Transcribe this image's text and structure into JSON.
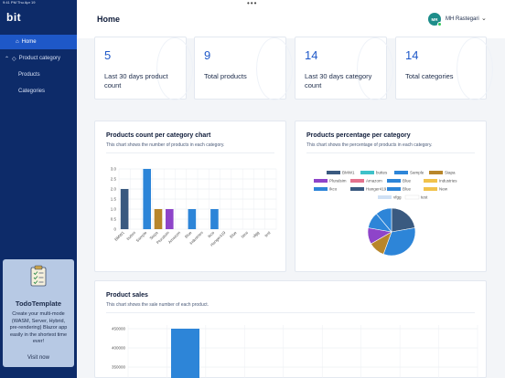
{
  "status": {
    "time": "9:41 PM  Thu Apr 19"
  },
  "sidebar": {
    "logo": "bit",
    "items": [
      {
        "label": "Home",
        "icon": "home-icon"
      },
      {
        "label": "Product category",
        "icon": "tag-icon"
      },
      {
        "label": "Products"
      },
      {
        "label": "Categories"
      }
    ],
    "promo": {
      "title": "TodoTemplate",
      "description": "Create your multi-mode (WASM, Server, Hybrid, pre-rendering) Blazor app easily in the shortest time ever!",
      "button": "Visit now"
    }
  },
  "header": {
    "title": "Home",
    "user_initials": "MR",
    "user_name": "MH Rastegari"
  },
  "stats": [
    {
      "value": "5",
      "label": "Last 30 days product count"
    },
    {
      "value": "9",
      "label": "Total products"
    },
    {
      "value": "14",
      "label": "Last 30 days category count"
    },
    {
      "value": "14",
      "label": "Total categories"
    }
  ],
  "panels": {
    "count": {
      "title": "Products count per category chart",
      "subtitle": "This chart shows the number of products in each category."
    },
    "percent": {
      "title": "Products percentage per category",
      "subtitle": "This chart shows the percentage of products in each category."
    },
    "sales": {
      "title": "Product sales",
      "subtitle": "This chart shows the sale number of each product."
    }
  },
  "colors": {
    "accent": "#1e58c8",
    "sidebar": "#0d2b69"
  },
  "chart_data": [
    {
      "type": "bar",
      "categories": [
        "BMW1",
        "buttes",
        "Sample",
        "Siapa",
        "Pluralsim",
        "Amazom",
        "Blue",
        "Industries",
        "Ikco",
        "Hanger419",
        "Blue",
        "New",
        "vfgg",
        "test"
      ],
      "values": [
        2,
        0,
        3,
        1,
        1,
        0,
        1,
        0,
        1,
        0,
        0,
        0,
        0,
        0
      ],
      "colors": [
        "#3a5a80",
        "#3fc1c9",
        "#2d85d8",
        "#b8862b",
        "#8e44c9",
        "#e5738e",
        "#2d85d8",
        "#f1c24b",
        "#2d85d8",
        "#3a5a80",
        "#2d85d8",
        "#f1c24b",
        "#cfe0f4",
        "#cfe0f4"
      ],
      "ylim": [
        0,
        3.0
      ],
      "yticks": [
        "0",
        "0.5",
        "1.0",
        "1.5",
        "2.0",
        "2.5",
        "3.0"
      ]
    },
    {
      "type": "pie",
      "legend": [
        {
          "label": "BMW1",
          "color": "#3a5a80"
        },
        {
          "label": "buttes",
          "color": "#3fc1c9"
        },
        {
          "label": "Sample",
          "color": "#2d85d8"
        },
        {
          "label": "Siapa",
          "color": "#b8862b"
        },
        {
          "label": "Pluralsim",
          "color": "#8e44c9"
        },
        {
          "label": "Amazom",
          "color": "#e5738e"
        },
        {
          "label": "Blue",
          "color": "#2d85d8"
        },
        {
          "label": "Industries",
          "color": "#f1c24b"
        },
        {
          "label": "Ikco",
          "color": "#2d85d8"
        },
        {
          "label": "Hanger419",
          "color": "#3a5a80"
        },
        {
          "label": "Blue",
          "color": "#2d85d8"
        },
        {
          "label": "New",
          "color": "#f1c24b"
        },
        {
          "label": "vfgg",
          "color": "#cfe0f4"
        },
        {
          "label": "test",
          "color": "#ffffff"
        }
      ],
      "slices": [
        {
          "label": "BMW1",
          "value": 22.2,
          "color": "#3a5a80"
        },
        {
          "label": "Sample",
          "value": 33.3,
          "color": "#2d85d8"
        },
        {
          "label": "Siapa",
          "value": 11.1,
          "color": "#b8862b"
        },
        {
          "label": "Pluralsim",
          "value": 11.1,
          "color": "#8e44c9"
        },
        {
          "label": "Blue",
          "value": 11.1,
          "color": "#2d85d8"
        },
        {
          "label": "Ikco",
          "value": 11.1,
          "color": "#2d85d8"
        }
      ]
    },
    {
      "type": "bar",
      "yticks": [
        "450000",
        "400000",
        "350000"
      ],
      "ylim": [
        330000,
        460000
      ],
      "values": [
        450000
      ],
      "color": "#2d85d8"
    }
  ]
}
